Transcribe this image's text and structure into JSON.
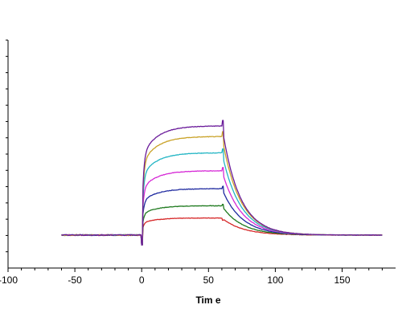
{
  "chart_data": {
    "type": "line",
    "title": "",
    "xlabel": "Tim e",
    "ylabel": "",
    "xlim": [
      -100,
      190
    ],
    "ylim": [
      -4,
      24
    ],
    "x_ticks": [
      -100,
      -50,
      0,
      50,
      100,
      150
    ],
    "x_tick_labels": [
      "-100",
      "-50",
      "0",
      "50",
      "100",
      "150"
    ],
    "y_minor_ticks": [
      -2,
      0,
      2,
      4,
      6,
      8,
      10,
      12,
      14,
      16,
      18,
      20,
      22,
      24
    ],
    "grid": false,
    "legend": "none",
    "baseline_y": 0.05,
    "injection_start_x": 0,
    "injection_end_x": 60,
    "x_range_data": [
      -60,
      180
    ],
    "series": [
      {
        "color": "#d62728",
        "association_plateau": 2.1
      },
      {
        "color": "#1f7a1f",
        "association_plateau": 3.6
      },
      {
        "color": "#1f2aa0",
        "association_plateau": 5.7
      },
      {
        "color": "#d62ad6",
        "association_plateau": 7.9
      },
      {
        "color": "#22b5c4",
        "association_plateau": 10.1
      },
      {
        "color": "#c9a227",
        "association_plateau": 12.1
      },
      {
        "color": "#6a1b9a",
        "association_plateau": 13.4
      }
    ]
  }
}
